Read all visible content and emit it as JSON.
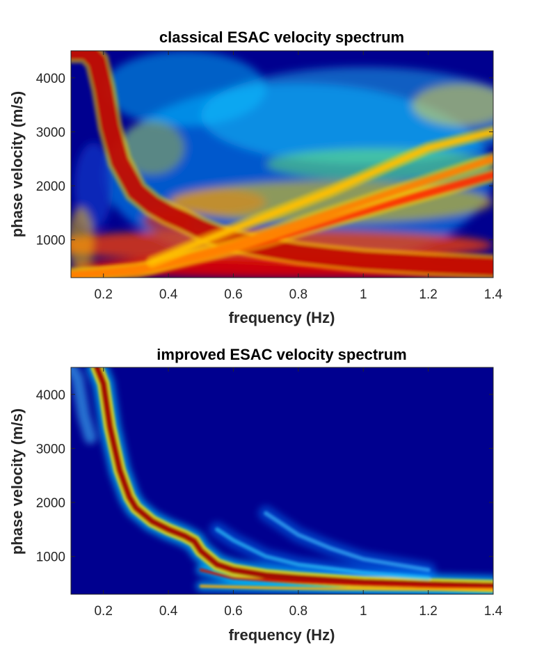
{
  "chart_data": [
    {
      "type": "heatmap",
      "title": "classical ESAC velocity spectrum",
      "xlabel": "frequency (Hz)",
      "ylabel": "phase velocity (m/s)",
      "xlim": [
        0.1,
        1.4
      ],
      "ylim": [
        300,
        4500
      ],
      "xticks": [
        0.2,
        0.4,
        0.6,
        0.8,
        1,
        1.2,
        1.4
      ],
      "xtick_labels": [
        "0.2",
        "0.4",
        "0.6",
        "0.8",
        "1",
        "1.2",
        "1.4"
      ],
      "yticks": [
        1000,
        2000,
        3000,
        4000
      ],
      "ytick_labels": [
        "1000",
        "2000",
        "3000",
        "4000"
      ],
      "colormap": "jet",
      "grid": false,
      "background": "#00008f",
      "modes": [
        {
          "f": [
            0.1,
            0.15,
            0.18,
            0.2,
            0.22,
            0.25,
            0.3,
            0.35,
            0.4,
            0.45,
            0.5,
            0.55,
            0.6,
            0.7,
            0.8,
            0.9,
            1.0,
            1.2,
            1.4
          ],
          "v": [
            4500,
            4500,
            4300,
            3800,
            3100,
            2450,
            1900,
            1650,
            1480,
            1350,
            1200,
            1080,
            980,
            850,
            750,
            680,
            620,
            550,
            500
          ]
        },
        {
          "f": [
            0.1,
            0.3,
            0.5,
            0.7,
            0.9,
            1.1,
            1.4
          ],
          "v": [
            350,
            420,
            700,
            1000,
            1350,
            1700,
            2200
          ]
        },
        {
          "f": [
            0.1,
            0.35,
            0.6,
            0.9,
            1.2,
            1.4
          ],
          "v": [
            330,
            500,
            900,
            1500,
            2100,
            2500
          ]
        },
        {
          "f": [
            0.35,
            0.6,
            0.9,
            1.2,
            1.4
          ],
          "v": [
            600,
            1200,
            1900,
            2700,
            3000
          ]
        }
      ]
    },
    {
      "type": "heatmap",
      "title": "improved ESAC velocity spectrum",
      "xlabel": "frequency (Hz)",
      "ylabel": "phase velocity (m/s)",
      "xlim": [
        0.1,
        1.4
      ],
      "ylim": [
        300,
        4500
      ],
      "xticks": [
        0.2,
        0.4,
        0.6,
        0.8,
        1,
        1.2,
        1.4
      ],
      "xtick_labels": [
        "0.2",
        "0.4",
        "0.6",
        "0.8",
        "1",
        "1.2",
        "1.4"
      ],
      "yticks": [
        1000,
        2000,
        3000,
        4000
      ],
      "ytick_labels": [
        "1000",
        "2000",
        "3000",
        "4000"
      ],
      "colormap": "jet",
      "grid": false,
      "background": "#00008f",
      "modes": [
        {
          "f": [
            0.18,
            0.2,
            0.22,
            0.25,
            0.28,
            0.3,
            0.35,
            0.4,
            0.45,
            0.48,
            0.5,
            0.55,
            0.6,
            0.7,
            0.8,
            1.0,
            1.2,
            1.4
          ],
          "v": [
            4500,
            4200,
            3400,
            2600,
            2100,
            1900,
            1650,
            1500,
            1380,
            1280,
            1100,
            850,
            750,
            650,
            600,
            520,
            480,
            450
          ]
        },
        {
          "f": [
            0.5,
            0.6,
            0.8,
            1.0,
            1.2,
            1.4
          ],
          "v": [
            750,
            600,
            520,
            470,
            440,
            410
          ]
        },
        {
          "f": [
            0.5,
            0.7,
            0.9,
            1.1,
            1.4
          ],
          "v": [
            450,
            420,
            400,
            390,
            380
          ]
        },
        {
          "f": [
            0.55,
            0.6,
            0.7,
            0.8,
            1.0,
            1.2
          ],
          "v": [
            1500,
            1300,
            1000,
            850,
            700,
            600
          ]
        },
        {
          "f": [
            0.7,
            0.8,
            0.9,
            1.0,
            1.2
          ],
          "v": [
            1800,
            1400,
            1150,
            950,
            750
          ]
        }
      ]
    }
  ]
}
